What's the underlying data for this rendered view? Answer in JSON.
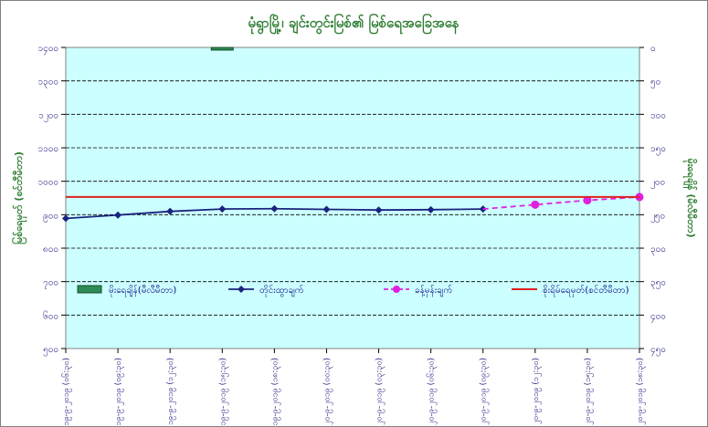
{
  "chart_data": {
    "type": "line",
    "title": "မုံရွာမြို့၊ ချင်းတွင်းမြစ်၏ မြစ်ရေအခြေအနေ",
    "ylabel_left": "မြစ်ရေမှတ် (စင်တီမီတာ)",
    "ylabel_right": "မိုးရေချိန် (မီလီမီတာ)",
    "left_axis": {
      "min": 500,
      "max": 1400,
      "step": 100,
      "ticks": [
        "၁၄၀၀",
        "၁၃၀၀",
        "၁၂၀၀",
        "၁၁၀၀",
        "၁၀၀၀",
        "၉၀၀",
        "၈၀၀",
        "၇၀၀",
        "၆၀၀",
        "၅၀၀"
      ]
    },
    "right_axis": {
      "min": 0,
      "max": 450,
      "step": 50,
      "reversed": true,
      "ticks": [
        "၀",
        "၅၀",
        "၁၀၀",
        "၁၅၀",
        "၂၀၀",
        "၂၅၀",
        "၃၀၀",
        "၃၅၀",
        "၄၀၀",
        "၄၅၀"
      ]
    },
    "x_labels": [
      "၁၉-၉-၂၀၁၉ (၀၆:၃၀)",
      "၁၉-၉-၂၀၁၉ (၀၉:၃၀)",
      "၁၉-၉-၂၀၁၉ (၁၂:၃၀)",
      "၁၉-၉-၂၀၁၉ (၁၅:၃၀)",
      "၁၉-၉-၂၀၁၉ (၁၈:၃၀)",
      "၂၀-၉-၂၀၁၉ (၀၀:၃၀)",
      "၂၀-၉-၂၀၁၉ (၀၃:၃၀)",
      "၂၀-၉-၂၀၁၉ (၀၆:၃၀)",
      "၂၀-၉-၂၀၁၉ (၀၉:၃၀)",
      "၂၀-၉-၂၀၁၉ (၁၂:၃၀)",
      "၂၀-၉-၂၀၁၉ (၁၅:၃၀)",
      "၂၀-၉-၂၀၁၉ (၁၈:၃၀)"
    ],
    "series": [
      {
        "name": "မိုးရေချိန်(မီလီမီတာ)",
        "kind": "bar",
        "axis": "right",
        "color": "#2e8b57",
        "values": [
          null,
          null,
          null,
          4,
          null,
          null,
          null,
          null,
          null,
          null,
          null,
          null
        ]
      },
      {
        "name": "တိုင်းထွာချက်",
        "kind": "line",
        "axis": "left",
        "color": "#1a237e",
        "values": [
          889,
          899,
          910,
          917,
          918,
          916,
          914,
          915,
          917,
          null,
          null,
          null
        ]
      },
      {
        "name": "ခန့်မှန်းချက်",
        "kind": "dashed",
        "axis": "left",
        "color": "#e020e0",
        "values": [
          null,
          null,
          null,
          null,
          null,
          null,
          null,
          null,
          null,
          930,
          943,
          953
        ]
      },
      {
        "name": "စိုးရိမ်ရေမှတ်(စင်တီမီတာ)",
        "kind": "hline",
        "axis": "left",
        "color": "#e02020",
        "value": 953
      }
    ],
    "grid": true,
    "legend": "bottom"
  }
}
